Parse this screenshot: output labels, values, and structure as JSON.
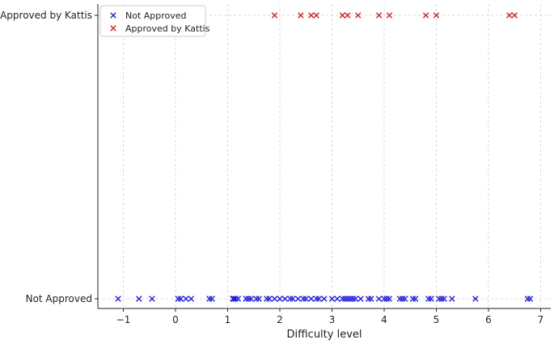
{
  "chart_data": {
    "type": "scatter",
    "xlabel": "Difficulty level",
    "ylabel": "",
    "xlim": [
      -1.5,
      7.2
    ],
    "x_ticks": [
      "−1",
      "0",
      "1",
      "2",
      "3",
      "4",
      "5",
      "6",
      "7"
    ],
    "y_categories": [
      "Not Approved",
      "Approved by Kattis"
    ],
    "grid": "vertical dashed",
    "legend_position": "top-left",
    "series": [
      {
        "name": "Not Approved",
        "color": "#1f1fd6",
        "marker": "x",
        "category": "Not Approved",
        "x": [
          -1.1,
          -0.7,
          -0.45,
          0.05,
          0.1,
          0.2,
          0.3,
          0.65,
          0.7,
          1.1,
          1.12,
          1.15,
          1.2,
          1.35,
          1.4,
          1.45,
          1.55,
          1.6,
          1.75,
          1.8,
          1.9,
          2.0,
          2.1,
          2.2,
          2.25,
          2.35,
          2.45,
          2.5,
          2.6,
          2.7,
          2.75,
          2.85,
          3.0,
          3.1,
          3.2,
          3.25,
          3.3,
          3.35,
          3.4,
          3.45,
          3.55,
          3.7,
          3.75,
          3.9,
          4.0,
          4.05,
          4.1,
          4.3,
          4.35,
          4.4,
          4.55,
          4.6,
          4.85,
          4.9,
          5.05,
          5.1,
          5.15,
          5.3,
          5.75,
          6.75,
          6.8
        ]
      },
      {
        "name": "Approved by Kattis",
        "color": "#d62020",
        "marker": "x",
        "category": "Approved by Kattis",
        "x": [
          1.9,
          2.4,
          2.6,
          2.7,
          3.2,
          3.3,
          3.5,
          3.9,
          4.1,
          4.8,
          5.0,
          6.4,
          6.5
        ]
      }
    ]
  }
}
